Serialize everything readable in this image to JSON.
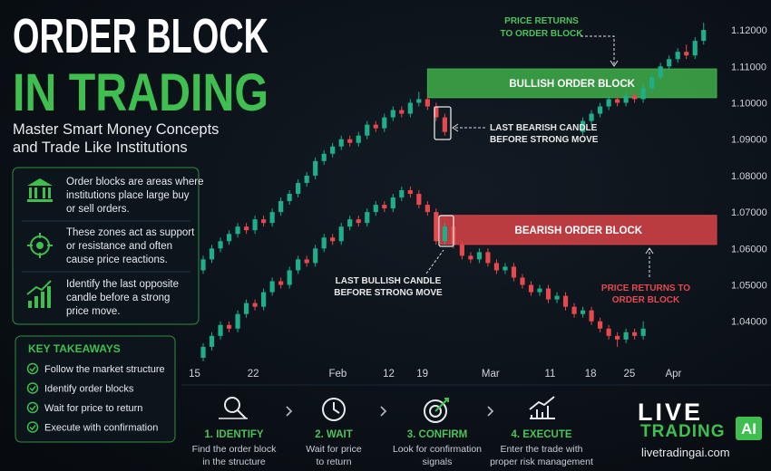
{
  "header": {
    "title_lines": [
      "ORDER BLOCK",
      "IN TRADING"
    ],
    "subtitle_lines": [
      "Master Smart Money Concepts",
      "and Trade Like Institutions"
    ]
  },
  "info": [
    {
      "lines": [
        "Order blocks are areas where",
        "institutions place large buy",
        "or sell orders."
      ]
    },
    {
      "lines": [
        "These zones act as support",
        "or resistance and often",
        "cause price reactions."
      ]
    },
    {
      "lines": [
        "Identify the last opposite",
        "candle before a strong",
        "price move."
      ]
    }
  ],
  "takeaways": {
    "title": "KEY TAKEAWAYS",
    "items": [
      "Follow the market structure",
      "Identify order blocks",
      "Wait for price to return",
      "Execute with confirmation"
    ]
  },
  "steps": [
    {
      "title": "1. IDENTIFY",
      "lines": [
        "Find the order block",
        "in the structure"
      ]
    },
    {
      "title": "2. WAIT",
      "lines": [
        "Wait for price",
        "to return"
      ]
    },
    {
      "title": "3. CONFIRM",
      "lines": [
        "Look for confirmation",
        "signals"
      ]
    },
    {
      "title": "4. EXECUTE",
      "lines": [
        "Enter the trade with",
        "proper risk management"
      ]
    }
  ],
  "logo": {
    "line1": "LIVE",
    "line2": "TRADING",
    "badge": "AI",
    "url": "livetradingai.com"
  },
  "chart_data": {
    "type": "candlestick",
    "xlim": [
      0,
      61.5
    ],
    "xticks": [
      {
        "value": 1,
        "label": "15"
      },
      {
        "value": 7.8,
        "label": "22"
      },
      {
        "value": 17.6,
        "label": "Feb"
      },
      {
        "value": 23.5,
        "label": "12"
      },
      {
        "value": 27.4,
        "label": "19"
      },
      {
        "value": 35.3,
        "label": "Mar"
      },
      {
        "value": 42.2,
        "label": "11"
      },
      {
        "value": 46.9,
        "label": "18"
      },
      {
        "value": 51.4,
        "label": "25"
      },
      {
        "value": 56.5,
        "label": "Apr"
      }
    ],
    "ylim": [
      1.028,
      1.123
    ],
    "yticks": [
      {
        "value": 1.04,
        "label": "1.04000"
      },
      {
        "value": 1.05,
        "label": "1.05000"
      },
      {
        "value": 1.06,
        "label": "1.06000"
      },
      {
        "value": 1.07,
        "label": "1.07000"
      },
      {
        "value": 1.08,
        "label": "1.08000"
      },
      {
        "value": 1.09,
        "label": "1.09000"
      },
      {
        "value": 1.1,
        "label": "1.10000"
      },
      {
        "value": 1.11,
        "label": "1.11000"
      },
      {
        "value": 1.12,
        "label": "1.12000"
      }
    ],
    "grid": false,
    "up_color": "#1fae8a",
    "down_color": "#e5484d",
    "series": [
      {
        "candles": [
          [
            2,
            1.054,
            1.058,
            1.053,
            1.057
          ],
          [
            3,
            1.057,
            1.061,
            1.056,
            1.06
          ],
          [
            4,
            1.06,
            1.063,
            1.059,
            1.062
          ],
          [
            5,
            1.062,
            1.065,
            1.061,
            1.064
          ],
          [
            6,
            1.064,
            1.067,
            1.063,
            1.066
          ],
          [
            7,
            1.066,
            1.067,
            1.064,
            1.065
          ],
          [
            8,
            1.065,
            1.069,
            1.064,
            1.068
          ],
          [
            9,
            1.068,
            1.069,
            1.066,
            1.067
          ],
          [
            10,
            1.067,
            1.071,
            1.066,
            1.07
          ],
          [
            11,
            1.07,
            1.074,
            1.069,
            1.073
          ],
          [
            12,
            1.073,
            1.076,
            1.072,
            1.075
          ],
          [
            13,
            1.075,
            1.079,
            1.074,
            1.078
          ],
          [
            14,
            1.078,
            1.081,
            1.077,
            1.08
          ],
          [
            15,
            1.08,
            1.085,
            1.079,
            1.084
          ],
          [
            16,
            1.084,
            1.087,
            1.083,
            1.086
          ],
          [
            17,
            1.086,
            1.089,
            1.085,
            1.088
          ],
          [
            18,
            1.088,
            1.091,
            1.087,
            1.09
          ],
          [
            19,
            1.09,
            1.091,
            1.088,
            1.089
          ],
          [
            20,
            1.089,
            1.092,
            1.088,
            1.091
          ],
          [
            21,
            1.091,
            1.095,
            1.09,
            1.094
          ],
          [
            22,
            1.094,
            1.095,
            1.092,
            1.093
          ],
          [
            23,
            1.093,
            1.097,
            1.092,
            1.096
          ],
          [
            24,
            1.096,
            1.099,
            1.095,
            1.098
          ],
          [
            25,
            1.098,
            1.099,
            1.096,
            1.097
          ],
          [
            26,
            1.097,
            1.101,
            1.096,
            1.1
          ],
          [
            27,
            1.1,
            1.103,
            1.099,
            1.101
          ],
          [
            28,
            1.101,
            1.102,
            1.098,
            1.099
          ],
          [
            29,
            1.099,
            1.1,
            1.095,
            1.096
          ],
          [
            30,
            1.096,
            1.097,
            1.091,
            1.092
          ],
          [
            46,
            1.092,
            1.096,
            1.091,
            1.095
          ],
          [
            47,
            1.095,
            1.098,
            1.094,
            1.097
          ],
          [
            48,
            1.097,
            1.1,
            1.096,
            1.099
          ],
          [
            49,
            1.099,
            1.102,
            1.098,
            1.101
          ],
          [
            50,
            1.101,
            1.102,
            1.099,
            1.1
          ],
          [
            51,
            1.1,
            1.103,
            1.099,
            1.102
          ],
          [
            52,
            1.102,
            1.103,
            1.1,
            1.101
          ],
          [
            53,
            1.101,
            1.105,
            1.1,
            1.104
          ],
          [
            54,
            1.104,
            1.108,
            1.103,
            1.107
          ],
          [
            55,
            1.107,
            1.111,
            1.106,
            1.11
          ],
          [
            56,
            1.11,
            1.113,
            1.109,
            1.112
          ],
          [
            57,
            1.112,
            1.115,
            1.111,
            1.114
          ],
          [
            58,
            1.114,
            1.116,
            1.112,
            1.113
          ],
          [
            59,
            1.113,
            1.118,
            1.112,
            1.117
          ],
          [
            60,
            1.117,
            1.122,
            1.116,
            1.12
          ]
        ]
      },
      {
        "candles": [
          [
            2,
            1.03,
            1.034,
            1.029,
            1.033
          ],
          [
            3,
            1.033,
            1.037,
            1.032,
            1.036
          ],
          [
            4,
            1.036,
            1.04,
            1.035,
            1.039
          ],
          [
            5,
            1.039,
            1.04,
            1.037,
            1.038
          ],
          [
            6,
            1.038,
            1.043,
            1.037,
            1.042
          ],
          [
            7,
            1.042,
            1.046,
            1.041,
            1.045
          ],
          [
            8,
            1.045,
            1.046,
            1.043,
            1.044
          ],
          [
            9,
            1.044,
            1.049,
            1.043,
            1.048
          ],
          [
            10,
            1.048,
            1.052,
            1.047,
            1.051
          ],
          [
            11,
            1.051,
            1.052,
            1.049,
            1.05
          ],
          [
            12,
            1.05,
            1.055,
            1.049,
            1.054
          ],
          [
            13,
            1.054,
            1.058,
            1.053,
            1.057
          ],
          [
            14,
            1.057,
            1.058,
            1.055,
            1.056
          ],
          [
            15,
            1.056,
            1.061,
            1.055,
            1.06
          ],
          [
            16,
            1.06,
            1.064,
            1.059,
            1.063
          ],
          [
            17,
            1.063,
            1.064,
            1.061,
            1.062
          ],
          [
            18,
            1.062,
            1.067,
            1.061,
            1.066
          ],
          [
            19,
            1.066,
            1.069,
            1.065,
            1.068
          ],
          [
            20,
            1.068,
            1.069,
            1.066,
            1.067
          ],
          [
            21,
            1.067,
            1.071,
            1.066,
            1.07
          ],
          [
            22,
            1.07,
            1.073,
            1.069,
            1.072
          ],
          [
            23,
            1.072,
            1.073,
            1.07,
            1.071
          ],
          [
            24,
            1.071,
            1.075,
            1.07,
            1.074
          ],
          [
            25,
            1.074,
            1.077,
            1.073,
            1.076
          ],
          [
            26,
            1.076,
            1.077,
            1.074,
            1.075
          ],
          [
            27,
            1.075,
            1.076,
            1.071,
            1.072
          ],
          [
            28,
            1.072,
            1.073,
            1.069,
            1.07
          ],
          [
            29,
            1.07,
            1.071,
            1.061,
            1.062
          ],
          [
            30,
            1.062,
            1.067,
            1.061,
            1.066
          ],
          [
            31,
            1.066,
            1.067,
            1.06,
            1.061
          ],
          [
            32,
            1.061,
            1.062,
            1.057,
            1.058
          ],
          [
            33,
            1.058,
            1.059,
            1.056,
            1.057
          ],
          [
            34,
            1.057,
            1.06,
            1.056,
            1.059
          ],
          [
            35,
            1.059,
            1.06,
            1.055,
            1.056
          ],
          [
            36,
            1.056,
            1.057,
            1.053,
            1.054
          ],
          [
            37,
            1.054,
            1.056,
            1.053,
            1.055
          ],
          [
            38,
            1.055,
            1.056,
            1.051,
            1.052
          ],
          [
            39,
            1.052,
            1.053,
            1.049,
            1.05
          ],
          [
            40,
            1.05,
            1.051,
            1.047,
            1.048
          ],
          [
            41,
            1.048,
            1.05,
            1.047,
            1.049
          ],
          [
            42,
            1.049,
            1.05,
            1.045,
            1.046
          ],
          [
            43,
            1.046,
            1.048,
            1.045,
            1.047
          ],
          [
            44,
            1.047,
            1.048,
            1.043,
            1.044
          ],
          [
            45,
            1.044,
            1.045,
            1.041,
            1.042
          ],
          [
            46,
            1.042,
            1.044,
            1.041,
            1.043
          ],
          [
            47,
            1.043,
            1.044,
            1.039,
            1.04
          ],
          [
            48,
            1.04,
            1.041,
            1.037,
            1.038
          ],
          [
            49,
            1.038,
            1.039,
            1.035,
            1.036
          ],
          [
            50,
            1.036,
            1.037,
            1.033,
            1.035
          ],
          [
            51,
            1.035,
            1.038,
            1.034,
            1.037
          ],
          [
            52,
            1.037,
            1.038,
            1.035,
            1.036
          ],
          [
            53,
            1.036,
            1.04,
            1.035,
            1.038
          ]
        ]
      }
    ],
    "zones": [
      {
        "label": "BULLISH ORDER BLOCK",
        "color": "#3fae49",
        "start": 28,
        "low": 1.1014,
        "high": 1.1093
      },
      {
        "label": "BEARISH ORDER BLOCK",
        "color": "#d84347",
        "start": 29.5,
        "low": 1.0611,
        "high": 1.0691
      }
    ],
    "annotations": [
      {
        "lines": [
          "PRICE RETURNS",
          "TO ORDER BLOCK"
        ]
      },
      {
        "lines": [
          "LAST BEARISH CANDLE",
          "BEFORE STRONG MOVE"
        ]
      },
      {
        "lines": [
          "LAST BULLISH CANDLE",
          "BEFORE STRONG MOVE"
        ]
      },
      {
        "lines": [
          "PRICE RETURNS TO",
          "ORDER BLOCK"
        ]
      }
    ]
  }
}
